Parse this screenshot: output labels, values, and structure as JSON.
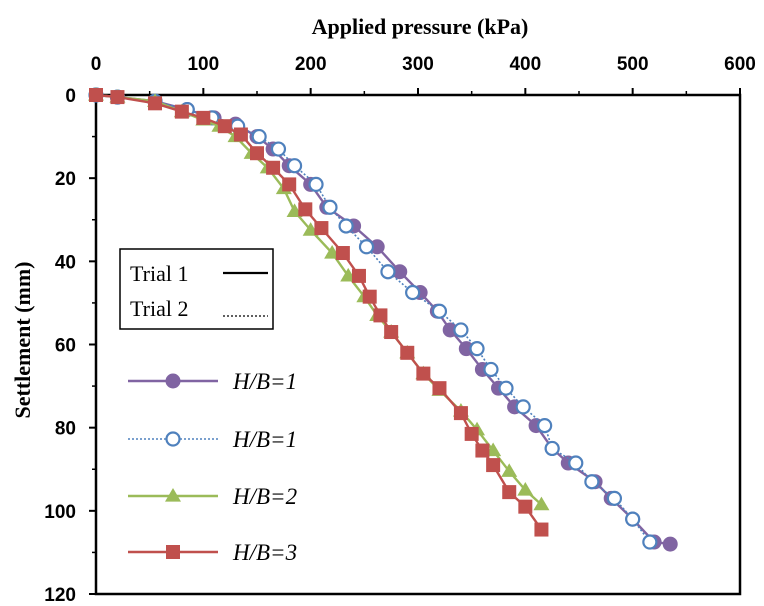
{
  "chart_data": {
    "type": "line",
    "xlabel": "Applied pressure (kPa)",
    "ylabel": "Settlement (mm)",
    "xlim": [
      0,
      600
    ],
    "ylim": [
      0,
      120
    ],
    "y_inverted": true,
    "x_axis_position": "top",
    "xticks": [
      "0",
      "100",
      "200",
      "300",
      "400",
      "500",
      "600"
    ],
    "yticks": [
      "0",
      "20",
      "40",
      "60",
      "80",
      "100",
      "120"
    ],
    "grid": false,
    "legend_box": {
      "position": "left",
      "entries": [
        {
          "label": "Trial 1",
          "style": "solid"
        },
        {
          "label": "Trial 2",
          "style": "dotted"
        }
      ]
    },
    "legend_placement": "bottom-left",
    "series": [
      {
        "name": "H/B=1",
        "trial": "Trial 1",
        "color": "#8064A2",
        "marker": "circle-filled",
        "line": "solid",
        "x": [
          0,
          20,
          55,
          85,
          110,
          130,
          150,
          165,
          180,
          200,
          215,
          240,
          262,
          283,
          302,
          318,
          330,
          345,
          360,
          375,
          390,
          410,
          425,
          440,
          465,
          480,
          500,
          520,
          535
        ],
        "y": [
          0,
          0.5,
          1.5,
          3.5,
          5.5,
          7,
          10,
          13,
          17,
          21.5,
          27,
          31.5,
          36.5,
          42.5,
          47.5,
          52,
          56.5,
          61,
          66,
          70.5,
          75,
          79.5,
          85,
          88.5,
          93,
          97,
          102,
          107.5,
          108
        ]
      },
      {
        "name": "H/B=1",
        "trial": "Trial 2",
        "color": "#4F81BD",
        "marker": "circle-open",
        "line": "dotted",
        "x": [
          0,
          20,
          55,
          85,
          108,
          132,
          152,
          170,
          185,
          205,
          218,
          233,
          252,
          272,
          295,
          320,
          340,
          355,
          368,
          382,
          398,
          418,
          425,
          447,
          462,
          483,
          500,
          516
        ],
        "y": [
          0,
          0.5,
          1.5,
          3.5,
          5.5,
          7.5,
          10,
          13,
          17,
          21.5,
          27,
          31.5,
          36.5,
          42.5,
          47.5,
          52,
          56.5,
          61,
          66,
          70.5,
          75,
          79.5,
          85,
          88.5,
          93,
          97,
          102,
          107.5
        ]
      },
      {
        "name": "H/B=2",
        "color": "#9BBB59",
        "marker": "triangle",
        "line": "solid",
        "x": [
          0,
          20,
          55,
          80,
          100,
          115,
          130,
          145,
          160,
          175,
          185,
          200,
          220,
          235,
          250,
          262,
          275,
          290,
          305,
          320,
          340,
          355,
          370,
          385,
          400,
          415
        ],
        "y": [
          0,
          0.5,
          1.5,
          4,
          6,
          7.5,
          10,
          14,
          17.5,
          22.5,
          28,
          32.5,
          38,
          43.5,
          48.5,
          53,
          57,
          62,
          67,
          71,
          76,
          80.5,
          85.5,
          90.5,
          95,
          98.5
        ]
      },
      {
        "name": "H/B=3",
        "color": "#C0504D",
        "marker": "square",
        "line": "solid",
        "x": [
          0,
          20,
          55,
          80,
          100,
          120,
          135,
          150,
          165,
          180,
          195,
          210,
          230,
          245,
          255,
          265,
          275,
          290,
          305,
          320,
          340,
          350,
          360,
          370,
          385,
          400,
          415
        ],
        "y": [
          0,
          0.5,
          2,
          4,
          5.5,
          7.5,
          9.5,
          14,
          17.5,
          21.5,
          27.5,
          32,
          38,
          43.5,
          48.5,
          53,
          57,
          62,
          67,
          70.5,
          76.5,
          81.5,
          85.5,
          89,
          95.5,
          99,
          104.5
        ]
      }
    ]
  }
}
